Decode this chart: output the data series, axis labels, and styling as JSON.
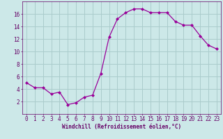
{
  "x": [
    0,
    1,
    2,
    3,
    4,
    5,
    6,
    7,
    8,
    9,
    10,
    11,
    12,
    13,
    14,
    15,
    16,
    17,
    18,
    19,
    20,
    21,
    22,
    23
  ],
  "y": [
    5,
    4.2,
    4.2,
    3.2,
    3.5,
    1.5,
    1.8,
    2.7,
    3.0,
    6.5,
    12.3,
    15.2,
    16.2,
    16.8,
    16.8,
    16.2,
    16.2,
    16.2,
    14.8,
    14.2,
    14.2,
    12.5,
    11.0,
    10.4
  ],
  "line_color": "#990099",
  "marker": "D",
  "marker_size": 2.0,
  "bg_color": "#cce8e8",
  "grid_color": "#aacccc",
  "xlabel": "Windchill (Refroidissement éolien,°C)",
  "xlabel_color": "#660066",
  "tick_color": "#660066",
  "ylim": [
    0,
    18
  ],
  "xlim": [
    -0.5,
    23.5
  ],
  "yticks": [
    2,
    4,
    6,
    8,
    10,
    12,
    14,
    16
  ],
  "xticks": [
    0,
    1,
    2,
    3,
    4,
    5,
    6,
    7,
    8,
    9,
    10,
    11,
    12,
    13,
    14,
    15,
    16,
    17,
    18,
    19,
    20,
    21,
    22,
    23
  ],
  "tick_fontsize": 5.5,
  "xlabel_fontsize": 5.5
}
